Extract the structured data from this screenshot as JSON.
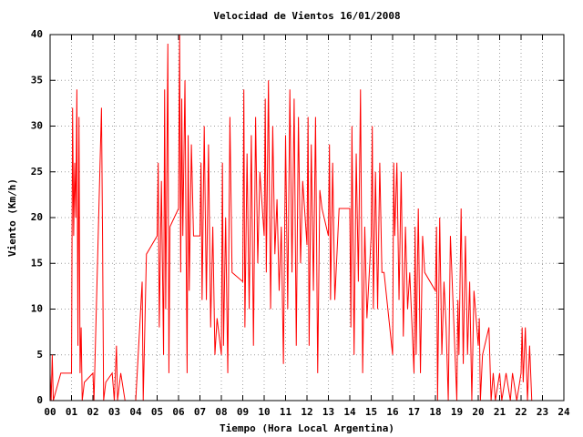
{
  "chart_data": {
    "type": "line",
    "title": "Velocidad de Vientos 16/01/2008",
    "x_label": "Tiempo (Hora Local Argentina)",
    "y_label": "Viento (Km/h)",
    "xlim": [
      0,
      24
    ],
    "xticks": [
      {
        "value": 0,
        "label": "00"
      },
      {
        "value": 1,
        "label": "01"
      },
      {
        "value": 2,
        "label": "02"
      },
      {
        "value": 3,
        "label": "03"
      },
      {
        "value": 4,
        "label": "04"
      },
      {
        "value": 5,
        "label": "05"
      },
      {
        "value": 6,
        "label": "06"
      },
      {
        "value": 7,
        "label": "07"
      },
      {
        "value": 8,
        "label": "08"
      },
      {
        "value": 9,
        "label": "09"
      },
      10,
      11,
      12,
      13,
      14,
      15,
      16,
      17,
      18,
      19,
      20,
      21,
      22,
      23,
      24
    ],
    "ylim": [
      0,
      40
    ],
    "yticks": [
      0,
      5,
      10,
      15,
      20,
      25,
      30,
      35,
      40
    ],
    "grid": true,
    "color": "#ff0000",
    "x": [
      0,
      0.05,
      0.1,
      0.15,
      0.5,
      1,
      1.05,
      1.1,
      1.15,
      1.2,
      1.25,
      1.3,
      1.35,
      1.4,
      1.45,
      1.5,
      1.6,
      2,
      2.05,
      2.4,
      2.45,
      2.5,
      2.6,
      2.9,
      3,
      3.1,
      3.15,
      3.3,
      3.5,
      4,
      4.3,
      4.35,
      4.5,
      5,
      5.05,
      5.1,
      5.2,
      5.3,
      5.35,
      5.4,
      5.5,
      5.55,
      5.6,
      6,
      6.05,
      6.1,
      6.15,
      6.2,
      6.3,
      6.35,
      6.4,
      6.45,
      6.5,
      6.6,
      6.7,
      7,
      7.05,
      7.1,
      7.2,
      7.3,
      7.4,
      7.5,
      7.6,
      7.7,
      7.8,
      8,
      8.05,
      8.1,
      8.2,
      8.3,
      8.4,
      8.5,
      9,
      9.05,
      9.1,
      9.2,
      9.3,
      9.4,
      9.5,
      9.6,
      9.7,
      9.8,
      10,
      10.05,
      10.1,
      10.2,
      10.3,
      10.4,
      10.5,
      10.6,
      10.7,
      10.8,
      10.9,
      11,
      11.1,
      11.2,
      11.3,
      11.4,
      11.5,
      11.6,
      11.7,
      11.8,
      12,
      12.05,
      12.1,
      12.2,
      12.3,
      12.4,
      12.5,
      12.6,
      12.7,
      13,
      13.05,
      13.1,
      13.2,
      13.3,
      13.5,
      14,
      14.05,
      14.1,
      14.2,
      14.3,
      14.4,
      14.5,
      14.6,
      14.7,
      14.8,
      15,
      15.05,
      15.1,
      15.2,
      15.3,
      15.4,
      15.5,
      15.6,
      16,
      16.05,
      16.1,
      16.2,
      16.3,
      16.4,
      16.5,
      16.6,
      16.7,
      16.8,
      17,
      17.05,
      17.1,
      17.2,
      17.3,
      17.4,
      17.5,
      18,
      18.05,
      18.1,
      18.2,
      18.3,
      18.4,
      18.5,
      18.6,
      18.7,
      19,
      19.05,
      19.1,
      19.2,
      19.3,
      19.4,
      19.5,
      19.6,
      19.7,
      19.8,
      20,
      20.05,
      20.1,
      20.2,
      20.5,
      20.6,
      20.7,
      20.8,
      21,
      21.1,
      21.3,
      21.5,
      21.6,
      21.8,
      22,
      22.05,
      22.1,
      22.2,
      22.3,
      22.4,
      22.5
    ],
    "values": [
      3,
      0,
      5,
      0,
      3,
      3,
      32,
      18,
      26,
      20,
      34,
      6,
      31,
      3,
      8,
      0,
      2,
      3,
      0,
      32,
      18,
      0,
      2,
      3,
      0,
      6,
      0,
      3,
      0,
      0,
      13,
      0,
      16,
      18,
      26,
      8,
      24,
      5,
      34,
      10,
      39,
      3,
      19,
      21,
      40,
      14,
      33,
      18,
      35,
      18,
      3,
      29,
      12,
      28,
      18,
      18,
      26,
      11,
      30,
      11,
      28,
      8,
      19,
      5,
      9,
      5,
      26,
      6,
      20,
      3,
      31,
      14,
      13,
      34,
      8,
      27,
      10,
      29,
      6,
      31,
      15,
      25,
      18,
      33,
      14,
      35,
      10,
      30,
      16,
      22,
      12,
      19,
      4,
      29,
      10,
      34,
      14,
      33,
      6,
      31,
      15,
      24,
      17,
      31,
      6,
      28,
      12,
      31,
      3,
      23,
      21,
      18,
      28,
      11,
      26,
      11,
      21,
      21,
      8,
      30,
      5,
      27,
      13,
      34,
      3,
      19,
      9,
      18,
      30,
      10,
      25,
      10,
      26,
      14,
      14,
      5,
      26,
      18,
      26,
      11,
      25,
      7,
      19,
      10,
      14,
      3,
      19,
      5,
      21,
      3,
      18,
      14,
      12,
      19,
      0,
      20,
      5,
      13,
      8,
      0,
      18,
      0,
      11,
      5,
      21,
      4,
      18,
      5,
      13,
      0,
      12,
      6,
      9,
      0,
      5,
      8,
      0,
      3,
      0,
      3,
      0,
      3,
      0,
      3,
      0,
      3,
      8,
      2,
      8,
      0,
      6,
      0
    ]
  }
}
